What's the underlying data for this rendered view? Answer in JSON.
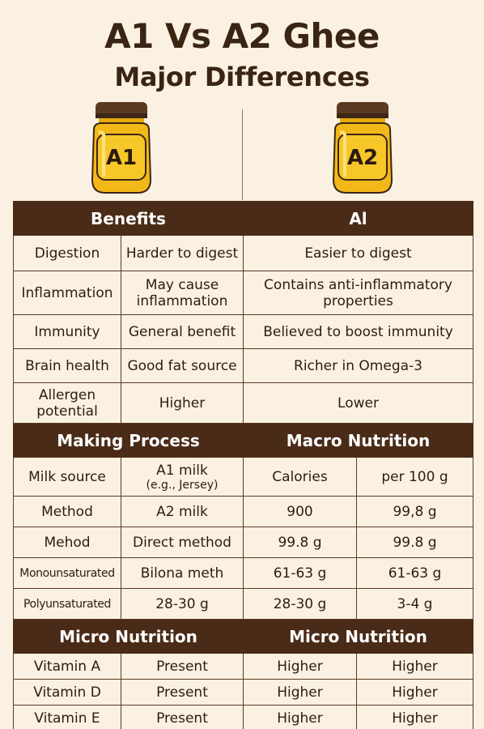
{
  "title": "A1 Vs A2 Ghee",
  "subtitle": "Major Differences",
  "jars": {
    "a1_label": "A1",
    "a2_label": "A2"
  },
  "benefits": {
    "header_left": "Benefits",
    "header_right": "Al",
    "rows": [
      {
        "label": "Digestion",
        "a1": "Harder to digest",
        "a2": "Easier to digest"
      },
      {
        "label": "Inflammation",
        "a1_line1": "May cause",
        "a1_line2": "inflammation",
        "a2_line1": "Contains anti-inflammatory",
        "a2_line2": "properties"
      },
      {
        "label": "Immunity",
        "a1": "General benefit",
        "a2": "Believed to boost immunity"
      },
      {
        "label": "Brain health",
        "a1": "Good fat source",
        "a2": "Richer in Omega-3"
      },
      {
        "label_line1": "Allergen",
        "label_line2": "potential",
        "a1": "Higher",
        "a2": "Lower"
      }
    ]
  },
  "process": {
    "header_left": "Making Process",
    "header_right": "Macro Nutrition",
    "rows": [
      {
        "c1": "Milk source",
        "c2_line1": "A1 milk",
        "c2_line2": "(e.g., Jersey)",
        "c3": "Calories",
        "c4": "per 100 g"
      },
      {
        "c1": "Method",
        "c2": "A2 milk",
        "c3": "900",
        "c4": "99,8 g"
      },
      {
        "c1": "Mehod",
        "c2": "Direct method",
        "c3": "99.8 g",
        "c4": "99.8 g"
      },
      {
        "c1": "Monounsaturated",
        "c2": "Bilona meth",
        "c3": "61-63 g",
        "c4": "61-63 g"
      },
      {
        "c1": "Polyunsaturated",
        "c2": "28-30 g",
        "c3": "28-30 g",
        "c4": "3-4 g"
      }
    ]
  },
  "micro": {
    "header_left": "Micro Nutrition",
    "header_right": "Micro Nutrition",
    "rows": [
      {
        "c1": "Vitamin A",
        "c2": "Present",
        "c3": "Higher",
        "c4": "Higher"
      },
      {
        "c1": "Vitamin D",
        "c2": "Present",
        "c3": "Higher",
        "c4": "Higher"
      },
      {
        "c1": "Vitamin E",
        "c2": "Present",
        "c3": "Higher",
        "c4": "Higher"
      }
    ]
  },
  "colors": {
    "header_bg": "#4a2b17",
    "page_bg": "#fbf1e2",
    "jar_gold": "#f2b818",
    "lid": "#5a3a22"
  }
}
